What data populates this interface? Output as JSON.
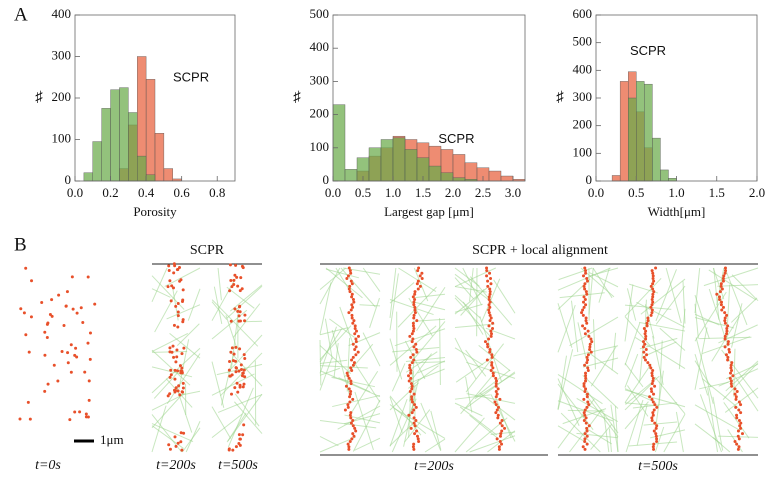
{
  "panel_labels": [
    "A",
    "B"
  ],
  "chart_data": [
    {
      "type": "histogram",
      "x_label": "Porosity",
      "y_label": "♯",
      "annotation": "SCPR",
      "bins": [
        0.05,
        0.1,
        0.15,
        0.2,
        0.25,
        0.3,
        0.35,
        0.4,
        0.45,
        0.5,
        0.55,
        0.6
      ],
      "series": [
        {
          "color": "#e8603c",
          "values": [
            0,
            0,
            0,
            0,
            30,
            135,
            300,
            245,
            115,
            30,
            5
          ]
        },
        {
          "color": "#6aaa4a",
          "values": [
            20,
            95,
            175,
            220,
            225,
            165,
            60,
            15,
            0,
            0,
            0
          ]
        }
      ],
      "xlim": [
        0,
        0.9
      ],
      "ylim": [
        0,
        400
      ],
      "xticks": [
        {
          "value": 0,
          "label": "0.0"
        },
        {
          "value": 0.2,
          "label": "0.2"
        },
        {
          "value": 0.4,
          "label": "0.4"
        },
        {
          "value": 0.6,
          "label": "0.6"
        },
        {
          "value": 0.8,
          "label": "0.8"
        }
      ],
      "yticks": [
        0,
        100,
        200,
        300,
        400
      ]
    },
    {
      "type": "histogram",
      "x_label": "Largest gap [μm]",
      "y_label": "♯",
      "annotation": "SCPR",
      "bins": [
        0,
        0.2,
        0.4,
        0.6,
        0.8,
        1.0,
        1.2,
        1.4,
        1.6,
        1.8,
        2.0,
        2.2,
        2.4,
        2.6,
        2.8,
        3.0,
        3.2
      ],
      "series": [
        {
          "color": "#e8603c",
          "values": [
            0,
            0,
            30,
            75,
            100,
            135,
            125,
            115,
            105,
            95,
            80,
            55,
            40,
            30,
            15,
            5
          ]
        },
        {
          "color": "#6aaa4a",
          "values": [
            230,
            35,
            70,
            100,
            125,
            130,
            95,
            70,
            45,
            25,
            10,
            5,
            0,
            0,
            0,
            0
          ]
        }
      ],
      "xlim": [
        0,
        3.2
      ],
      "ylim": [
        0,
        500
      ],
      "xticks": [
        {
          "value": 0,
          "label": "0.0"
        },
        {
          "value": 0.5,
          "label": "0.5"
        },
        {
          "value": 1,
          "label": "1.0"
        },
        {
          "value": 1.5,
          "label": "1.5"
        },
        {
          "value": 2,
          "label": "2.0"
        },
        {
          "value": 2.5,
          "label": "2.5"
        },
        {
          "value": 3,
          "label": "3.0"
        }
      ],
      "yticks": [
        0,
        100,
        200,
        300,
        400,
        500
      ]
    },
    {
      "type": "histogram",
      "x_label": "Width[μm]",
      "y_label": "♯",
      "annotation": "SCPR",
      "bins": [
        0.2,
        0.3,
        0.4,
        0.5,
        0.6,
        0.7,
        0.8,
        0.9,
        1.0
      ],
      "series": [
        {
          "color": "#e8603c",
          "values": [
            20,
            360,
            395,
            250,
            120,
            0,
            0,
            0
          ]
        },
        {
          "color": "#6aaa4a",
          "values": [
            0,
            0,
            300,
            360,
            350,
            155,
            40,
            10
          ]
        }
      ],
      "xlim": [
        0,
        2
      ],
      "ylim": [
        0,
        600
      ],
      "xticks": [
        {
          "value": 0,
          "label": "0.0"
        },
        {
          "value": 0.5,
          "label": "0.5"
        },
        {
          "value": 1,
          "label": "1.0"
        },
        {
          "value": 1.5,
          "label": "1.5"
        },
        {
          "value": 2,
          "label": "2.0"
        }
      ],
      "yticks": [
        0,
        100,
        200,
        300,
        400,
        500,
        600
      ]
    }
  ],
  "panel_b": {
    "group_titles": [
      "SCPR",
      "SCPR + local alignment"
    ],
    "time_labels": [
      "t=0s",
      "t=200s",
      "t=500s",
      "t=200s",
      "t=500s"
    ],
    "scale_bar": "1μm"
  }
}
